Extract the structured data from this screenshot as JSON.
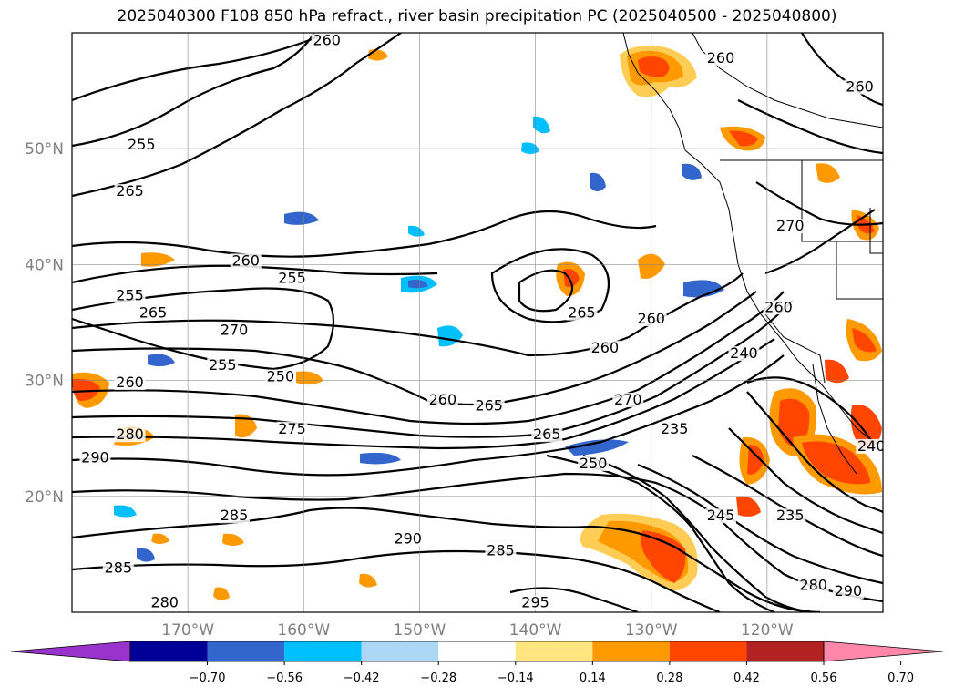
{
  "title": "2025040300 F108 850 hPa refract., river basin precipitation PC (2025040500 - 2025040800)",
  "map": {
    "lon_range": [
      -180,
      -110
    ],
    "lat_range": [
      10,
      60
    ],
    "lat_labels": [
      {
        "lat": 20,
        "text": "20°N"
      },
      {
        "lat": 30,
        "text": "30°N"
      },
      {
        "lat": 40,
        "text": "40°N"
      },
      {
        "lat": 50,
        "text": "50°N"
      }
    ],
    "lon_labels": [
      {
        "lon": -170,
        "text": "170°W"
      },
      {
        "lon": -160,
        "text": "160°W"
      },
      {
        "lon": -150,
        "text": "150°W"
      },
      {
        "lon": -140,
        "text": "140°W"
      },
      {
        "lon": -130,
        "text": "130°W"
      },
      {
        "lon": -120,
        "text": "120°W"
      }
    ],
    "gridlines": true,
    "contour_labels": [
      {
        "text": "260",
        "lon": -158,
        "lat": 59
      },
      {
        "text": "255",
        "lon": -174,
        "lat": 50
      },
      {
        "text": "265",
        "lon": -175,
        "lat": 46
      },
      {
        "text": "260",
        "lon": -165,
        "lat": 40
      },
      {
        "text": "255",
        "lon": -161,
        "lat": 38.5
      },
      {
        "text": "255",
        "lon": -175,
        "lat": 37
      },
      {
        "text": "265",
        "lon": -173,
        "lat": 35.5
      },
      {
        "text": "270",
        "lon": -166,
        "lat": 34
      },
      {
        "text": "255",
        "lon": -167,
        "lat": 31
      },
      {
        "text": "250",
        "lon": -162,
        "lat": 30
      },
      {
        "text": "260",
        "lon": -175,
        "lat": 29.5
      },
      {
        "text": "280",
        "lon": -175,
        "lat": 25
      },
      {
        "text": "290",
        "lon": -178,
        "lat": 23
      },
      {
        "text": "275",
        "lon": -161,
        "lat": 25.5
      },
      {
        "text": "260",
        "lon": -148,
        "lat": 28
      },
      {
        "text": "265",
        "lon": -144,
        "lat": 27.5
      },
      {
        "text": "265",
        "lon": -136,
        "lat": 35.5
      },
      {
        "text": "260",
        "lon": -130,
        "lat": 35
      },
      {
        "text": "260",
        "lon": -134,
        "lat": 32.5
      },
      {
        "text": "270",
        "lon": -132,
        "lat": 28
      },
      {
        "text": "265",
        "lon": -139,
        "lat": 25
      },
      {
        "text": "250",
        "lon": -135,
        "lat": 22.5
      },
      {
        "text": "235",
        "lon": -128,
        "lat": 25.5
      },
      {
        "text": "240",
        "lon": -122,
        "lat": 32
      },
      {
        "text": "260",
        "lon": -119,
        "lat": 36
      },
      {
        "text": "270",
        "lon": -118,
        "lat": 43
      },
      {
        "text": "260",
        "lon": -112,
        "lat": 55
      },
      {
        "text": "260",
        "lon": -124,
        "lat": 57.5
      },
      {
        "text": "285",
        "lon": -166,
        "lat": 18
      },
      {
        "text": "290",
        "lon": -151,
        "lat": 16
      },
      {
        "text": "285",
        "lon": -143,
        "lat": 15
      },
      {
        "text": "295",
        "lon": -140,
        "lat": 10.5
      },
      {
        "text": "280",
        "lon": -172,
        "lat": 10.5
      },
      {
        "text": "285",
        "lon": -176,
        "lat": 13.5
      },
      {
        "text": "235",
        "lon": -118,
        "lat": 18
      },
      {
        "text": "245",
        "lon": -124,
        "lat": 18
      },
      {
        "text": "290",
        "lon": -113,
        "lat": 11.5
      },
      {
        "text": "280",
        "lon": -116,
        "lat": 12
      },
      {
        "text": "240",
        "lon": -111,
        "lat": 24
      }
    ]
  },
  "colorbar": {
    "colors": [
      "#9933cc",
      "#000099",
      "#3366cc",
      "#00bfff",
      "#add8f5",
      "#ffffff",
      "#ffe680",
      "#ff9900",
      "#ff4500",
      "#b22222",
      "#ff88aa"
    ],
    "tick_labels": [
      "−0.70",
      "−0.56",
      "−0.42",
      "−0.28",
      "−0.14",
      "0.14",
      "0.28",
      "0.42",
      "0.56",
      "0.70"
    ]
  }
}
